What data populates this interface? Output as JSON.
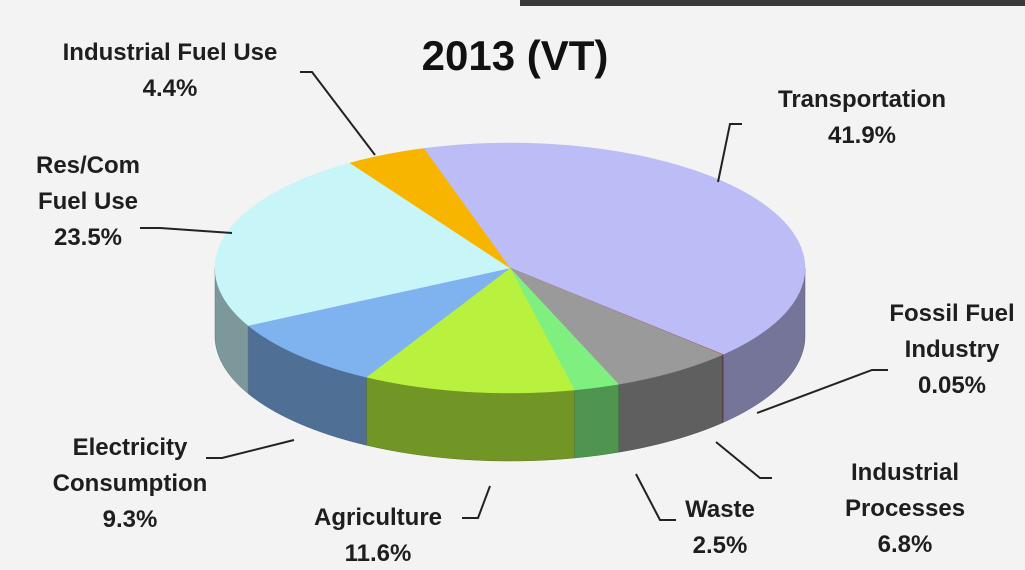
{
  "chart_data": {
    "type": "pie3d",
    "title": "2013 (VT)",
    "categories": [
      "Transportation",
      "Fossil Fuel Industry",
      "Industrial Processes",
      "Waste",
      "Agriculture",
      "Electricity Consumption",
      "Res/Com Fuel Use",
      "Industrial Fuel Use"
    ],
    "values": [
      41.9,
      0.05,
      6.8,
      2.5,
      11.6,
      9.3,
      23.5,
      4.4
    ],
    "value_labels": [
      "41.9%",
      "0.05%",
      "6.8%",
      "2.5%",
      "11.6%",
      "9.3%",
      "23.5%",
      "4.4%"
    ],
    "colors": [
      "#bcbcf6",
      "#b04a4a",
      "#9a9a9a",
      "#7ff07f",
      "#b8f23e",
      "#7fb3f0",
      "#c8f5f8",
      "#f7b500"
    ]
  }
}
